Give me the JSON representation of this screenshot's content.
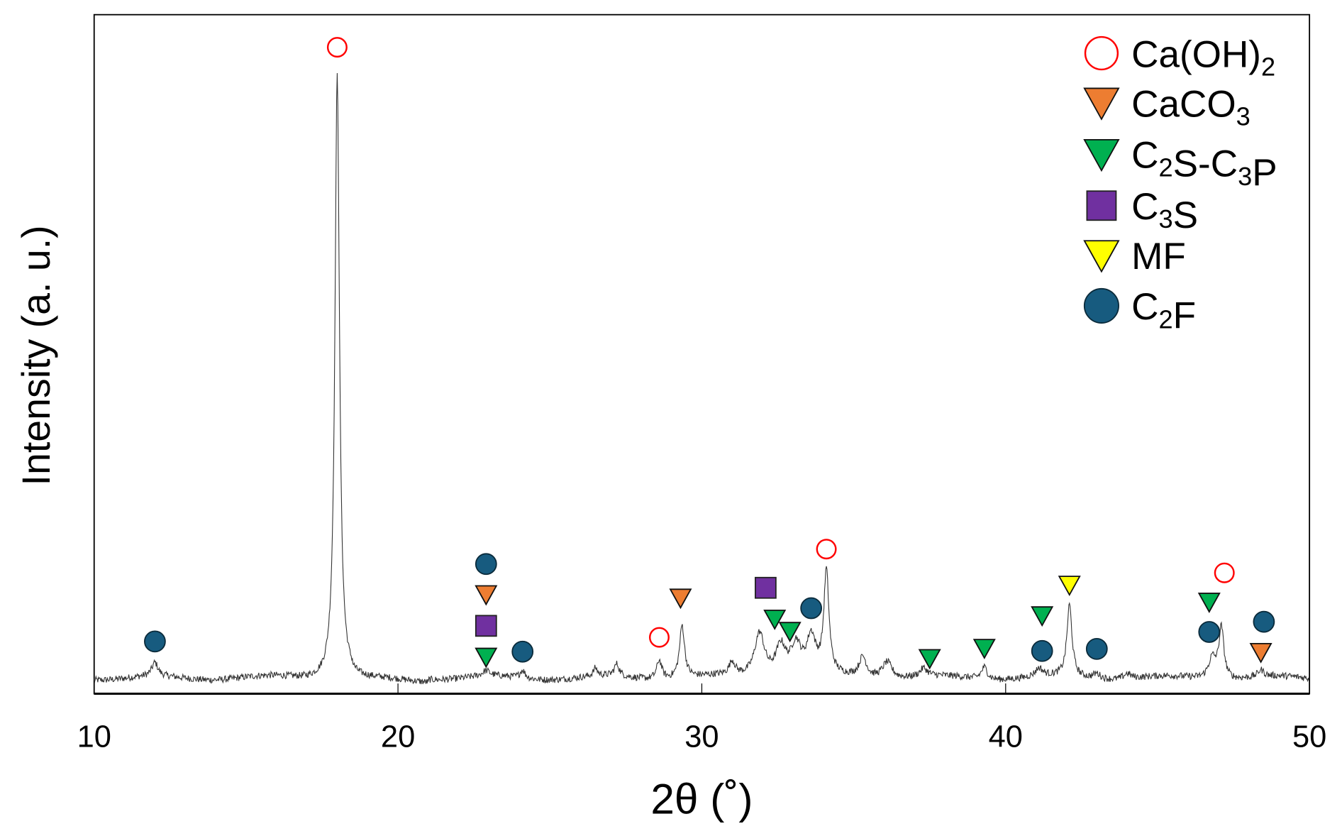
{
  "chart_data": {
    "type": "line",
    "title": "",
    "xlabel": "2θ (˚)",
    "ylabel": "Intensity (a. u.)",
    "xlim": [
      10,
      50
    ],
    "ylim": [
      0,
      100
    ],
    "xticks": [
      "10",
      "20",
      "30",
      "40",
      "50"
    ],
    "grid": false,
    "legend_position": "top-right",
    "baseline": 2.3,
    "peaks": [
      {
        "x": 12.0,
        "h": 2.0,
        "w": 0.12
      },
      {
        "x": 18.0,
        "h": 89.0,
        "w": 0.09
      },
      {
        "x": 22.9,
        "h": 0.8,
        "w": 0.15
      },
      {
        "x": 24.1,
        "h": 1.2,
        "w": 0.1
      },
      {
        "x": 26.5,
        "h": 1.2,
        "w": 0.08
      },
      {
        "x": 27.2,
        "h": 1.8,
        "w": 0.1
      },
      {
        "x": 28.6,
        "h": 2.8,
        "w": 0.1
      },
      {
        "x": 29.35,
        "h": 7.8,
        "w": 0.1
      },
      {
        "x": 31.0,
        "h": 2.0,
        "w": 0.12
      },
      {
        "x": 31.9,
        "h": 6.5,
        "w": 0.2
      },
      {
        "x": 32.6,
        "h": 4.5,
        "w": 0.2
      },
      {
        "x": 33.1,
        "h": 4.5,
        "w": 0.2
      },
      {
        "x": 33.6,
        "h": 5.5,
        "w": 0.18
      },
      {
        "x": 34.1,
        "h": 15.0,
        "w": 0.1
      },
      {
        "x": 35.3,
        "h": 3.0,
        "w": 0.15
      },
      {
        "x": 36.1,
        "h": 2.5,
        "w": 0.2
      },
      {
        "x": 37.3,
        "h": 1.2,
        "w": 0.15
      },
      {
        "x": 39.3,
        "h": 1.8,
        "w": 0.12
      },
      {
        "x": 41.1,
        "h": 1.2,
        "w": 0.15
      },
      {
        "x": 42.1,
        "h": 10.6,
        "w": 0.1
      },
      {
        "x": 43.0,
        "h": 0.8,
        "w": 0.15
      },
      {
        "x": 44.0,
        "h": 0.8,
        "w": 0.15
      },
      {
        "x": 46.8,
        "h": 3.0,
        "w": 0.15
      },
      {
        "x": 47.1,
        "h": 7.5,
        "w": 0.1
      },
      {
        "x": 48.4,
        "h": 1.0,
        "w": 0.12
      }
    ],
    "series": [
      {
        "name": "Ca(OH)2",
        "marker": "open-circle",
        "color": "#ff0000",
        "points": [
          [
            18.0,
            95.2
          ],
          [
            28.6,
            8.3
          ],
          [
            34.1,
            21.3
          ],
          [
            47.2,
            17.8
          ]
        ]
      },
      {
        "name": "CaCO3",
        "marker": "triangle-down",
        "color": "#ed7d31",
        "points": [
          [
            22.9,
            14.6
          ],
          [
            29.3,
            14.1
          ],
          [
            48.4,
            6.1
          ]
        ]
      },
      {
        "name": "C2S-C3P",
        "marker": "triangle-down",
        "color": "#00b050",
        "points": [
          [
            22.9,
            5.4
          ],
          [
            32.4,
            11.0
          ],
          [
            32.9,
            9.2
          ],
          [
            37.5,
            5.2
          ],
          [
            39.3,
            6.7
          ],
          [
            41.2,
            11.5
          ],
          [
            46.7,
            13.5
          ]
        ]
      },
      {
        "name": "C3S",
        "marker": "square",
        "color": "#7030a0",
        "points": [
          [
            22.9,
            10.0
          ],
          [
            32.1,
            15.6
          ]
        ]
      },
      {
        "name": "MF",
        "marker": "triangle-down",
        "color": "#ffff00",
        "points": [
          [
            42.1,
            16.0
          ]
        ]
      },
      {
        "name": "C2F",
        "marker": "filled-circle",
        "color": "#175b7f",
        "points": [
          [
            12.0,
            7.7
          ],
          [
            22.9,
            19.1
          ],
          [
            24.1,
            6.2
          ],
          [
            33.6,
            12.6
          ],
          [
            41.2,
            6.3
          ],
          [
            43.0,
            6.6
          ],
          [
            46.7,
            9.1
          ],
          [
            48.5,
            10.6
          ]
        ]
      }
    ]
  }
}
